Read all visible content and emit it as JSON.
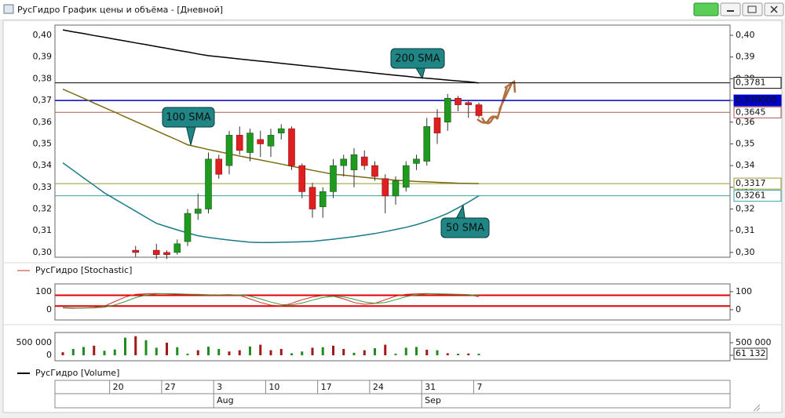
{
  "window": {
    "title": "РусГидро График цены и объёма - [Дневной]"
  },
  "chart_data": [
    {
      "type": "candlestick",
      "categories": [
        null,
        null,
        null,
        null,
        null,
        "20",
        null,
        null,
        null,
        null,
        "27",
        null,
        null,
        null,
        null,
        "3",
        null,
        null,
        null,
        null,
        "10",
        null,
        null,
        null,
        null,
        "17",
        null,
        null,
        null,
        null,
        "24",
        null,
        null,
        null,
        null,
        "31",
        null,
        null,
        null,
        null,
        "7"
      ],
      "months": [
        null,
        null,
        null,
        null,
        null,
        null,
        null,
        null,
        null,
        null,
        null,
        null,
        null,
        null,
        null,
        "Aug",
        null,
        null,
        null,
        null,
        null,
        null,
        null,
        null,
        null,
        null,
        null,
        null,
        null,
        null,
        null,
        null,
        null,
        null,
        null,
        "Sep",
        null,
        null,
        null,
        null,
        null
      ],
      "open": [
        null,
        null,
        null,
        null,
        null,
        null,
        null,
        0.301,
        null,
        0.301,
        0.3,
        0.3,
        0.305,
        0.318,
        0.32,
        0.343,
        0.34,
        0.354,
        0.346,
        0.352,
        0.349,
        0.355,
        0.357,
        0.34,
        0.33,
        0.321,
        0.328,
        0.34,
        0.338,
        0.344,
        0.34,
        0.334,
        0.326,
        0.33,
        0.341,
        0.342,
        0.362,
        0.36,
        0.371,
        0.369,
        0.368
      ],
      "high": [
        null,
        null,
        null,
        null,
        null,
        null,
        null,
        0.303,
        null,
        0.304,
        0.301,
        0.306,
        0.32,
        0.327,
        0.346,
        0.345,
        0.356,
        0.358,
        0.357,
        0.356,
        0.357,
        0.359,
        0.358,
        0.341,
        0.332,
        0.33,
        0.343,
        0.345,
        0.348,
        0.347,
        0.342,
        0.336,
        0.335,
        0.342,
        0.345,
        0.362,
        0.366,
        0.373,
        0.372,
        0.37,
        0.369
      ],
      "low": [
        null,
        null,
        null,
        null,
        null,
        null,
        null,
        0.298,
        null,
        0.297,
        0.297,
        0.299,
        0.303,
        0.315,
        0.318,
        0.334,
        0.336,
        0.345,
        0.342,
        0.344,
        0.344,
        0.352,
        0.338,
        0.325,
        0.316,
        0.316,
        0.325,
        0.335,
        0.33,
        0.338,
        0.333,
        0.318,
        0.322,
        0.328,
        0.338,
        0.34,
        0.35,
        0.356,
        0.365,
        0.362,
        0.362
      ],
      "close": [
        null,
        null,
        null,
        null,
        null,
        null,
        null,
        0.3,
        null,
        0.299,
        0.299,
        0.304,
        0.318,
        0.32,
        0.343,
        0.336,
        0.354,
        0.347,
        0.355,
        0.35,
        0.354,
        0.357,
        0.34,
        0.328,
        0.32,
        0.328,
        0.34,
        0.343,
        0.345,
        0.34,
        0.335,
        0.326,
        0.333,
        0.34,
        0.343,
        0.358,
        0.355,
        0.371,
        0.368,
        0.368,
        0.363
      ],
      "up_color": "#1e9a1e",
      "down_color": "#e02020",
      "series": [
        {
          "name": "200 SMA",
          "color": "#000000",
          "values": [
            0.4025,
            0.4016,
            0.4008,
            0.3999,
            0.3991,
            0.3982,
            0.3974,
            0.3965,
            0.3957,
            0.3948,
            0.394,
            0.3931,
            0.3923,
            0.3914,
            0.3906,
            0.3901,
            0.3896,
            0.3891,
            0.3886,
            0.3881,
            0.3876,
            0.3871,
            0.3866,
            0.3861,
            0.3856,
            0.3851,
            0.3846,
            0.3841,
            0.3836,
            0.3831,
            0.3826,
            0.3821,
            0.3816,
            0.3811,
            0.3806,
            0.3802,
            0.3798,
            0.3794,
            0.379,
            0.3786,
            0.3781
          ]
        },
        {
          "name": "100 SMA",
          "color": "#7a6a10",
          "values": [
            0.3752,
            0.3731,
            0.371,
            0.3688,
            0.3667,
            0.3646,
            0.3624,
            0.3603,
            0.3582,
            0.356,
            0.3539,
            0.3518,
            0.3496,
            0.3485,
            0.3474,
            0.3464,
            0.3454,
            0.3444,
            0.3435,
            0.3426,
            0.3416,
            0.3407,
            0.3397,
            0.3388,
            0.3378,
            0.3369,
            0.336,
            0.3356,
            0.3351,
            0.3346,
            0.3341,
            0.3337,
            0.3333,
            0.333,
            0.3327,
            0.3325,
            0.3323,
            0.3321,
            0.3319,
            0.3318,
            0.3317
          ]
        },
        {
          "name": "50 SMA",
          "color": "#1a7a8a",
          "values": [
            0.3413,
            0.3378,
            0.3343,
            0.3309,
            0.3274,
            0.3246,
            0.3218,
            0.319,
            0.3162,
            0.3134,
            0.3119,
            0.3104,
            0.309,
            0.3077,
            0.3069,
            0.3063,
            0.3057,
            0.3052,
            0.3047,
            0.3046,
            0.3046,
            0.3047,
            0.3048,
            0.3049,
            0.3051,
            0.3056,
            0.3061,
            0.3067,
            0.3073,
            0.308,
            0.3087,
            0.3096,
            0.3106,
            0.3116,
            0.3128,
            0.3143,
            0.316,
            0.318,
            0.3205,
            0.3232,
            0.3261
          ]
        }
      ],
      "levels": [
        {
          "value": 0.3781,
          "label": "0,3781",
          "color": "#000000"
        },
        {
          "value": 0.37,
          "label": "0,370000",
          "color": "#0000c8"
        },
        {
          "value": 0.3645,
          "label": "0,3645",
          "color": "#b05a4a"
        },
        {
          "value": 0.3317,
          "label": "0,3317",
          "color": "#9a9a30"
        },
        {
          "value": 0.3261,
          "label": "0,3261",
          "color": "#3aa0a8"
        }
      ],
      "ylim": [
        0.2978,
        0.4047
      ],
      "yticks": [
        {
          "value": 0.3,
          "label": "0,30"
        },
        {
          "value": 0.31,
          "label": "0,31"
        },
        {
          "value": 0.32,
          "label": "0,32"
        },
        {
          "value": 0.33,
          "label": "0,33"
        },
        {
          "value": 0.34,
          "label": "0,34"
        },
        {
          "value": 0.35,
          "label": "0,35"
        },
        {
          "value": 0.36,
          "label": "0,36"
        },
        {
          "value": 0.37,
          "label": "0,37"
        },
        {
          "value": 0.38,
          "label": "0,38"
        },
        {
          "value": 0.39,
          "label": "0,39"
        },
        {
          "value": 0.4,
          "label": "0,40"
        }
      ]
    },
    {
      "type": "line",
      "title": "РусГидро [Stochastic]",
      "legend_color": "#c03020",
      "series": [
        {
          "color": "#d0302a",
          "values": [
            10,
            8,
            9,
            12,
            20,
            45,
            70,
            85,
            88,
            90,
            88,
            86,
            85,
            83,
            80,
            82,
            84,
            80,
            60,
            40,
            25,
            20,
            35,
            55,
            70,
            78,
            75,
            60,
            40,
            30,
            35,
            55,
            75,
            85,
            88,
            90,
            87,
            85,
            84,
            82,
            72
          ]
        },
        {
          "color": "#3a9a3a",
          "values": [
            12,
            10,
            9,
            10,
            14,
            26,
            45,
            67,
            81,
            88,
            89,
            88,
            86,
            85,
            83,
            82,
            82,
            82,
            75,
            60,
            42,
            28,
            27,
            37,
            53,
            68,
            74,
            71,
            58,
            43,
            35,
            40,
            55,
            72,
            83,
            88,
            88,
            87,
            85,
            84,
            79
          ]
        }
      ],
      "levels": [
        80,
        20
      ],
      "level_color": "#e00000",
      "ylim": [
        -57,
        143
      ],
      "yticks": [
        100,
        0
      ]
    },
    {
      "type": "bar",
      "title": "РусГидро [Volume]",
      "legend_color": "#000000",
      "values": [
        120000,
        250000,
        330000,
        380000,
        180000,
        230000,
        700000,
        760000,
        600000,
        300000,
        500000,
        320000,
        60000,
        200000,
        340000,
        250000,
        150000,
        200000,
        350000,
        420000,
        200000,
        250000,
        80000,
        150000,
        300000,
        320000,
        380000,
        250000,
        100000,
        200000,
        280000,
        420000,
        60000,
        300000,
        330000,
        220000,
        200000,
        80000,
        60000,
        70000,
        61132
      ],
      "colors": [
        "#a01818",
        "#1e8c1e",
        "#1e8c1e",
        "#a01818",
        "#1e8c1e",
        "#1e8c1e",
        "#1e8c1e",
        "#a01818",
        "#1e8c1e",
        "#1e8c1e",
        "#a01818",
        "#1e8c1e",
        "#1e8c1e",
        "#a01818",
        "#1e8c1e",
        "#1e8c1e",
        "#a01818",
        "#a01818",
        "#1e8c1e",
        "#a01818",
        "#a01818",
        "#a01818",
        "#1e8c1e",
        "#1e8c1e",
        "#a01818",
        "#1e8c1e",
        "#a01818",
        "#a01818",
        "#1e8c1e",
        "#a01818",
        "#1e8c1e",
        "#a01818",
        "#1e8c1e",
        "#1e8c1e",
        "#1e8c1e",
        "#a01818",
        "#1e8c1e",
        "#a01818",
        "#1e8c1e",
        "#a01818",
        "#1e8c1e"
      ],
      "last_value_label": "61 132",
      "ylim": [
        -219000,
        906000
      ],
      "yticks": [
        {
          "value": 500000,
          "label": "500 000"
        },
        0
      ]
    }
  ]
}
